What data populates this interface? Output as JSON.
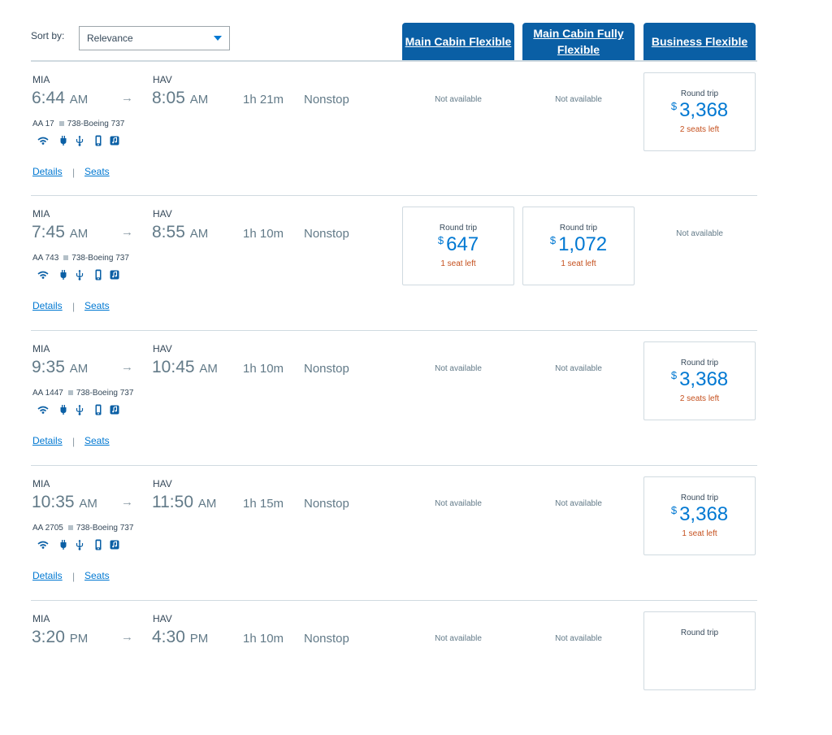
{
  "sort": {
    "label": "Sort by:",
    "value": "Relevance"
  },
  "cabins": [
    {
      "label": "Main Cabin Flexible"
    },
    {
      "label": "Main Cabin Fully Flexible"
    },
    {
      "label": "Business Flexible"
    }
  ],
  "links": {
    "details": "Details",
    "seats": "Seats",
    "separator": "|"
  },
  "arrow": "→",
  "flights": [
    {
      "dep_code": "MIA",
      "dep_time": "6:44",
      "dep_ampm": "AM",
      "arr_code": "HAV",
      "arr_time": "8:05",
      "arr_ampm": "AM",
      "duration": "1h 21m",
      "stops": "Nonstop",
      "flight_no": "AA 17",
      "aircraft": "738-Boeing 737",
      "fares": [
        {
          "available": false,
          "text": "Not available"
        },
        {
          "available": false,
          "text": "Not available"
        },
        {
          "available": true,
          "label": "Round trip",
          "currency": "$",
          "price": "3,368",
          "seats": "2 seats left"
        }
      ]
    },
    {
      "dep_code": "MIA",
      "dep_time": "7:45",
      "dep_ampm": "AM",
      "arr_code": "HAV",
      "arr_time": "8:55",
      "arr_ampm": "AM",
      "duration": "1h 10m",
      "stops": "Nonstop",
      "flight_no": "AA 743",
      "aircraft": "738-Boeing 737",
      "fares": [
        {
          "available": true,
          "label": "Round trip",
          "currency": "$",
          "price": "647",
          "seats": "1 seat left"
        },
        {
          "available": true,
          "label": "Round trip",
          "currency": "$",
          "price": "1,072",
          "seats": "1 seat left"
        },
        {
          "available": false,
          "text": "Not available"
        }
      ]
    },
    {
      "dep_code": "MIA",
      "dep_time": "9:35",
      "dep_ampm": "AM",
      "arr_code": "HAV",
      "arr_time": "10:45",
      "arr_ampm": "AM",
      "duration": "1h 10m",
      "stops": "Nonstop",
      "flight_no": "AA 1447",
      "aircraft": "738-Boeing 737",
      "fares": [
        {
          "available": false,
          "text": "Not available"
        },
        {
          "available": false,
          "text": "Not available"
        },
        {
          "available": true,
          "label": "Round trip",
          "currency": "$",
          "price": "3,368",
          "seats": "2 seats left"
        }
      ]
    },
    {
      "dep_code": "MIA",
      "dep_time": "10:35",
      "dep_ampm": "AM",
      "arr_code": "HAV",
      "arr_time": "11:50",
      "arr_ampm": "AM",
      "duration": "1h 15m",
      "stops": "Nonstop",
      "flight_no": "AA 2705",
      "aircraft": "738-Boeing 737",
      "fares": [
        {
          "available": false,
          "text": "Not available"
        },
        {
          "available": false,
          "text": "Not available"
        },
        {
          "available": true,
          "label": "Round trip",
          "currency": "$",
          "price": "3,368",
          "seats": "1 seat left"
        }
      ]
    },
    {
      "dep_code": "MIA",
      "dep_time": "3:20",
      "dep_ampm": "PM",
      "arr_code": "HAV",
      "arr_time": "4:30",
      "arr_ampm": "PM",
      "duration": "1h 10m",
      "stops": "Nonstop",
      "flight_no": "",
      "aircraft": "",
      "fares": [
        {
          "available": false,
          "text": "Not available"
        },
        {
          "available": false,
          "text": "Not available"
        },
        {
          "available": true,
          "label": "Round trip",
          "currency": "",
          "price": "",
          "seats": ""
        }
      ]
    }
  ],
  "amenity_icons": [
    "wifi-icon",
    "power-outlet-icon",
    "usb-icon",
    "mobile-device-icon",
    "entertainment-icon"
  ],
  "colors": {
    "brand_blue": "#0a5fa5",
    "link_blue": "#0078d2",
    "seats_orange": "#c5501e",
    "text": "#36495a"
  }
}
